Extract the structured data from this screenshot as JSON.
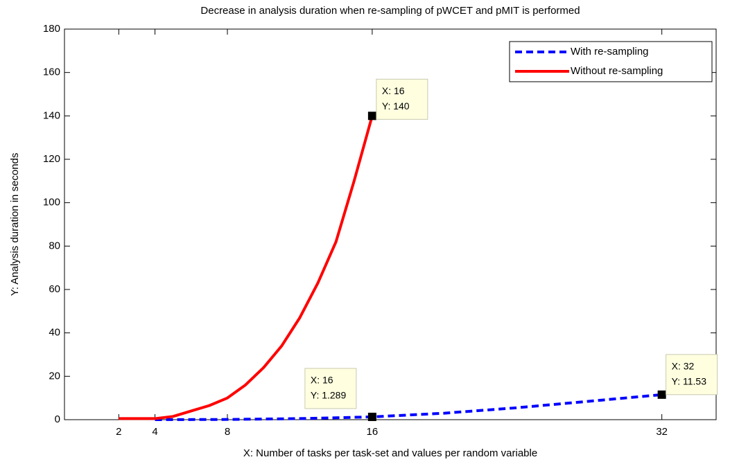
{
  "chart_data": {
    "type": "line",
    "title": "Decrease in analysis duration when re-sampling of pWCET and pMIT is performed",
    "xlabel": "X: Number of tasks per task-set and values per random variable",
    "ylabel": "Y: Analysis duration in seconds",
    "xlim": [
      -1,
      35
    ],
    "ylim": [
      0,
      180
    ],
    "xticks": [
      2,
      4,
      8,
      16,
      32
    ],
    "yticks": [
      0,
      20,
      40,
      60,
      80,
      100,
      120,
      140,
      160,
      180
    ],
    "grid": false,
    "legend": "upper right",
    "series": [
      {
        "name": "With re-sampling",
        "color": "#0000ff",
        "dash": true,
        "x": [
          4,
          8,
          12,
          16,
          20,
          24,
          28,
          32
        ],
        "values": [
          0.01,
          0.1,
          0.5,
          1.289,
          3,
          5.5,
          8.5,
          11.53
        ]
      },
      {
        "name": "Without re-sampling",
        "color": "#ff0000",
        "dash": false,
        "x": [
          2,
          3,
          4,
          5,
          6,
          7,
          8,
          9,
          10,
          11,
          12,
          13,
          14,
          15,
          16
        ],
        "values": [
          0.5,
          0.5,
          0.5,
          1.5,
          4,
          6.5,
          10,
          16,
          24,
          34,
          47,
          63,
          82,
          110,
          140
        ]
      }
    ],
    "annotations": [
      {
        "x": 16,
        "y": 140,
        "x_label": "X: 16",
        "y_label": "Y: 140"
      },
      {
        "x": 16,
        "y": 1.289,
        "x_label": "X: 16",
        "y_label": "Y: 1.289"
      },
      {
        "x": 32,
        "y": 11.53,
        "x_label": "X: 32",
        "y_label": "Y: 11.53"
      }
    ]
  }
}
